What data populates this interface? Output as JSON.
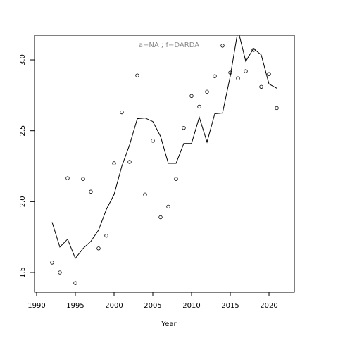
{
  "chart_data": {
    "type": "scatter",
    "annotation": "a=NA  ;  f=DARDA",
    "x_label": "Year",
    "x": [
      1992,
      1993,
      1994,
      1995,
      1996,
      1997,
      1998,
      1999,
      2000,
      2001,
      2002,
      2003,
      2004,
      2005,
      2006,
      2007,
      2008,
      2009,
      2010,
      2011,
      2012,
      2013,
      2014,
      2015,
      2016,
      2017,
      2018,
      2019,
      2020,
      2021
    ],
    "series": [
      {
        "style": "points",
        "color": "#000000",
        "values": [
          1.57,
          1.5,
          2.165,
          1.425,
          2.16,
          2.07,
          1.67,
          1.76,
          2.27,
          2.63,
          2.28,
          2.89,
          2.05,
          2.43,
          1.89,
          1.965,
          2.16,
          2.52,
          2.745,
          2.67,
          2.775,
          2.885,
          3.1,
          2.91,
          2.87,
          2.92,
          3.07,
          2.81,
          2.9,
          2.66
        ]
      },
      {
        "style": "line",
        "color": "#000000",
        "values": [
          1.855,
          1.68,
          1.735,
          1.6,
          1.67,
          1.72,
          1.8,
          1.945,
          2.05,
          2.25,
          2.4,
          2.585,
          2.59,
          2.565,
          2.46,
          2.27,
          2.27,
          2.41,
          2.41,
          2.595,
          2.42,
          2.62,
          2.625,
          2.885,
          3.21,
          2.99,
          3.08,
          3.035,
          2.83,
          2.8
        ]
      }
    ],
    "xlim": [
      1989.73,
      2023.27
    ],
    "xticks": [
      1990,
      1995,
      2000,
      2005,
      2010,
      2015,
      2020
    ],
    "ylim": [
      1.361,
      3.174
    ],
    "yticks": [
      1.5,
      {
        "value": 2,
        "label": "2.0"
      },
      2.5,
      {
        "value": 3,
        "label": "3.0"
      }
    ]
  }
}
